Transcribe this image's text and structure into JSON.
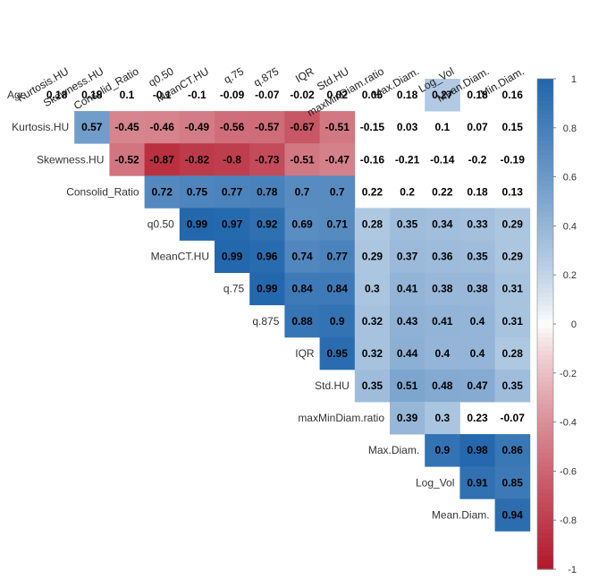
{
  "chart_data": {
    "type": "heatmap",
    "subtype": "correlation-upper-triangle",
    "variables": [
      "Age",
      "Kurtosis.HU",
      "Skewness.HU",
      "Consolid_Ratio",
      "q0.50",
      "MeanCT.HU",
      "q.75",
      "q.875",
      "IQR",
      "Std.HU",
      "maxMinDiam.ratio",
      "Max.Diam.",
      "Log_Vol",
      "Mean.Diam.",
      "Min.Diam."
    ],
    "column_labels": [
      "Kurtosis.HU",
      "Skewness.HU",
      "Consolid_Ratio",
      "q0.50",
      "MeanCT.HU",
      "q.75",
      "q.875",
      "IQR",
      "Std.HU",
      "maxMinDiam.ratio",
      "Max.Diam.",
      "Log_Vol",
      "Mean.Diam.",
      "Min.Diam."
    ],
    "row_labels": [
      "Age",
      "Kurtosis.HU",
      "Skewness.HU",
      "Consolid_Ratio",
      "q0.50",
      "MeanCT.HU",
      "q.75",
      "q.875",
      "IQR",
      "Std.HU",
      "maxMinDiam.ratio",
      "Max.Diam.",
      "Log_Vol",
      "Mean.Diam."
    ],
    "value_labels": [
      [
        "0.18",
        "0.18",
        "0.1",
        "-0.1",
        "-0.1",
        "-0.09",
        "-0.07",
        "-0.02",
        "0.02",
        "0.05",
        "0.18",
        "0.27",
        "0.18",
        "0.16"
      ],
      [
        "0.57",
        "-0.45",
        "-0.46",
        "-0.49",
        "-0.56",
        "-0.57",
        "-0.67",
        "-0.51",
        "-0.15",
        "0.03",
        "0.1",
        "0.07",
        "0.15"
      ],
      [
        "-0.52",
        "-0.87",
        "-0.82",
        "-0.8",
        "-0.73",
        "-0.51",
        "-0.47",
        "-0.16",
        "-0.21",
        "-0.14",
        "-0.2",
        "-0.19"
      ],
      [
        "0.72",
        "0.75",
        "0.77",
        "0.78",
        "0.7",
        "0.7",
        "0.22",
        "0.2",
        "0.22",
        "0.18",
        "0.13"
      ],
      [
        "0.99",
        "0.97",
        "0.92",
        "0.69",
        "0.71",
        "0.28",
        "0.35",
        "0.34",
        "0.33",
        "0.29"
      ],
      [
        "0.99",
        "0.96",
        "0.74",
        "0.77",
        "0.29",
        "0.37",
        "0.36",
        "0.35",
        "0.29"
      ],
      [
        "0.99",
        "0.84",
        "0.84",
        "0.3",
        "0.41",
        "0.38",
        "0.38",
        "0.31"
      ],
      [
        "0.88",
        "0.9",
        "0.32",
        "0.43",
        "0.41",
        "0.4",
        "0.31"
      ],
      [
        "0.95",
        "0.32",
        "0.44",
        "0.4",
        "0.4",
        "0.28"
      ],
      [
        "0.35",
        "0.51",
        "0.48",
        "0.47",
        "0.35"
      ],
      [
        "0.39",
        "0.3",
        "0.23",
        "-0.07"
      ],
      [
        "0.9",
        "0.98",
        "0.86"
      ],
      [
        "0.91",
        "0.85"
      ],
      [
        "0.94"
      ]
    ],
    "significant_cells": [
      [
        0,
        11
      ],
      [
        1,
        0
      ],
      [
        1,
        1
      ],
      [
        1,
        2
      ],
      [
        1,
        3
      ],
      [
        1,
        4
      ],
      [
        1,
        5
      ],
      [
        1,
        6
      ],
      [
        1,
        7
      ],
      [
        2,
        0
      ],
      [
        2,
        1
      ],
      [
        2,
        2
      ],
      [
        2,
        3
      ],
      [
        2,
        4
      ],
      [
        2,
        5
      ],
      [
        2,
        6
      ],
      [
        3,
        0
      ],
      [
        3,
        1
      ],
      [
        3,
        2
      ],
      [
        3,
        3
      ],
      [
        3,
        4
      ],
      [
        3,
        5
      ],
      [
        4,
        0
      ],
      [
        4,
        1
      ],
      [
        4,
        2
      ],
      [
        4,
        3
      ],
      [
        4,
        4
      ],
      [
        4,
        5
      ],
      [
        4,
        6
      ],
      [
        4,
        7
      ],
      [
        4,
        8
      ],
      [
        4,
        9
      ],
      [
        5,
        0
      ],
      [
        5,
        1
      ],
      [
        5,
        2
      ],
      [
        5,
        3
      ],
      [
        5,
        4
      ],
      [
        5,
        5
      ],
      [
        5,
        6
      ],
      [
        5,
        7
      ],
      [
        5,
        8
      ],
      [
        6,
        0
      ],
      [
        6,
        1
      ],
      [
        6,
        2
      ],
      [
        6,
        3
      ],
      [
        6,
        4
      ],
      [
        6,
        5
      ],
      [
        6,
        6
      ],
      [
        6,
        7
      ],
      [
        7,
        0
      ],
      [
        7,
        1
      ],
      [
        7,
        2
      ],
      [
        7,
        3
      ],
      [
        7,
        4
      ],
      [
        7,
        5
      ],
      [
        7,
        6
      ],
      [
        8,
        0
      ],
      [
        8,
        1
      ],
      [
        8,
        2
      ],
      [
        8,
        3
      ],
      [
        8,
        4
      ],
      [
        8,
        5
      ],
      [
        9,
        0
      ],
      [
        9,
        1
      ],
      [
        9,
        2
      ],
      [
        9,
        3
      ],
      [
        9,
        4
      ],
      [
        10,
        0
      ],
      [
        10,
        1
      ],
      [
        11,
        0
      ],
      [
        11,
        1
      ],
      [
        11,
        2
      ],
      [
        12,
        0
      ],
      [
        12,
        1
      ],
      [
        13,
        0
      ]
    ],
    "colorbar": {
      "range": [
        -1,
        1
      ],
      "tick_labels": [
        "1",
        "0.8",
        "0.6",
        "0.4",
        "0.2",
        "0",
        "-0.2",
        "-0.4",
        "-0.6",
        "-0.8",
        "-1"
      ],
      "colors": {
        "negative": "#b2182b",
        "neutral": "#ffffff",
        "positive": "#2166ac"
      }
    }
  }
}
